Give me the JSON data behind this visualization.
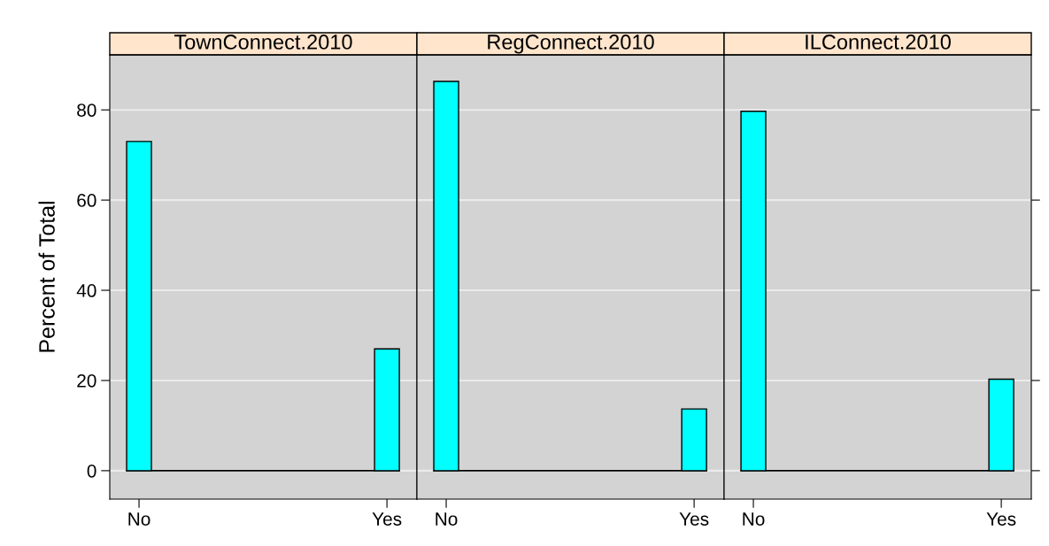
{
  "chart_data": [
    {
      "type": "bar",
      "title": "TownConnect.2010",
      "ylabel": "Percent of Total",
      "categories": [
        "No",
        "Yes"
      ],
      "values": [
        73,
        27
      ],
      "color": "#00ffff",
      "ylim": [
        -6.3,
        92.2
      ],
      "yticks": [
        0,
        20,
        40,
        60,
        80
      ],
      "grid": "y",
      "ref_lines": [
        {
          "axis": "y",
          "value": 0
        }
      ]
    },
    {
      "type": "bar",
      "title": "RegConnect.2010",
      "categories": [
        "No",
        "Yes"
      ],
      "values": [
        86.3,
        13.7
      ],
      "color": "#00ffff",
      "ylim": [
        -6.3,
        92.2
      ],
      "yticks": [
        0,
        20,
        40,
        60,
        80
      ],
      "grid": "y",
      "tick_labels": "x",
      "ref_lines": [
        {
          "axis": "y",
          "value": 0
        }
      ]
    },
    {
      "type": "bar",
      "title": "ILConnect.2010",
      "categories": [
        "No",
        "Yes"
      ],
      "values": [
        79.7,
        20.3
      ],
      "color": "#00ffff",
      "ylim": [
        -6.3,
        92.2
      ],
      "yticks": [
        0,
        20,
        40,
        60,
        80
      ],
      "grid": "y",
      "tick_labels": "x",
      "ref_lines": [
        {
          "axis": "y",
          "value": 0
        }
      ]
    }
  ]
}
